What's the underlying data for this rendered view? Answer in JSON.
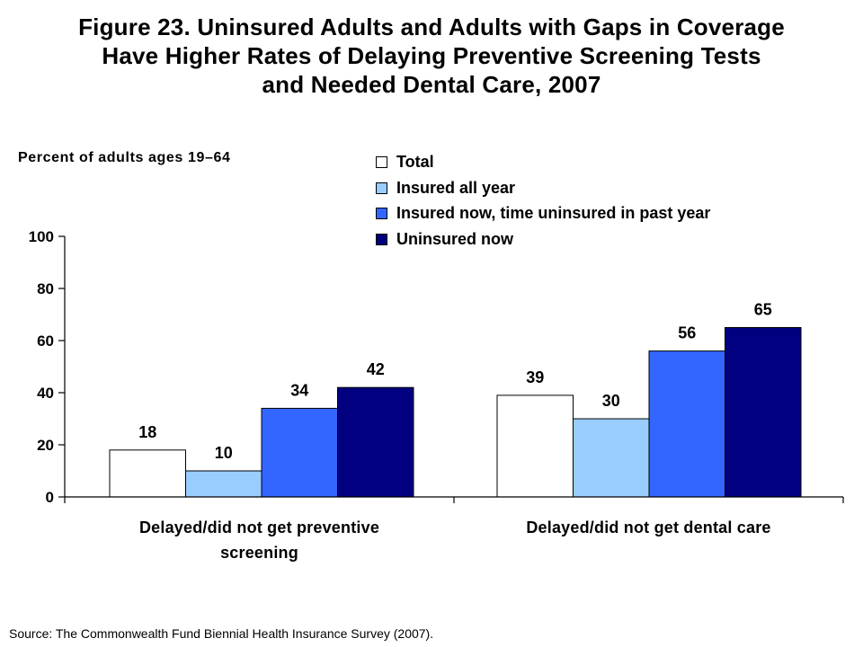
{
  "title": [
    "Figure 23. Uninsured Adults and Adults with Gaps in Coverage",
    "Have Higher Rates of Delaying Preventive Screening Tests",
    "and Needed Dental Care, 2007"
  ],
  "source": "Source: The Commonwealth Fund Biennial Health Insurance Survey (2007).",
  "chart_data": {
    "type": "bar",
    "ylabel": "Percent of adults ages 19–64",
    "xlabel": "",
    "ylim": [
      0,
      100
    ],
    "yticks": [
      "0",
      "20",
      "40",
      "60",
      "80",
      "100"
    ],
    "grid": false,
    "legend_position": "top-right",
    "categories": [
      [
        "Delayed/did not get preventive",
        "screening"
      ],
      [
        "Delayed/did not get dental care"
      ]
    ],
    "series": [
      {
        "name": "Total",
        "color": "#FFFFFF",
        "values": [
          18,
          39
        ]
      },
      {
        "name": "Insured all year",
        "color": "#99CCFF",
        "values": [
          10,
          30
        ]
      },
      {
        "name": "Insured now, time uninsured in past year",
        "color": "#3366FF",
        "values": [
          34,
          56
        ]
      },
      {
        "name": "Uninsured now",
        "color": "#000080",
        "values": [
          42,
          65
        ]
      }
    ]
  }
}
